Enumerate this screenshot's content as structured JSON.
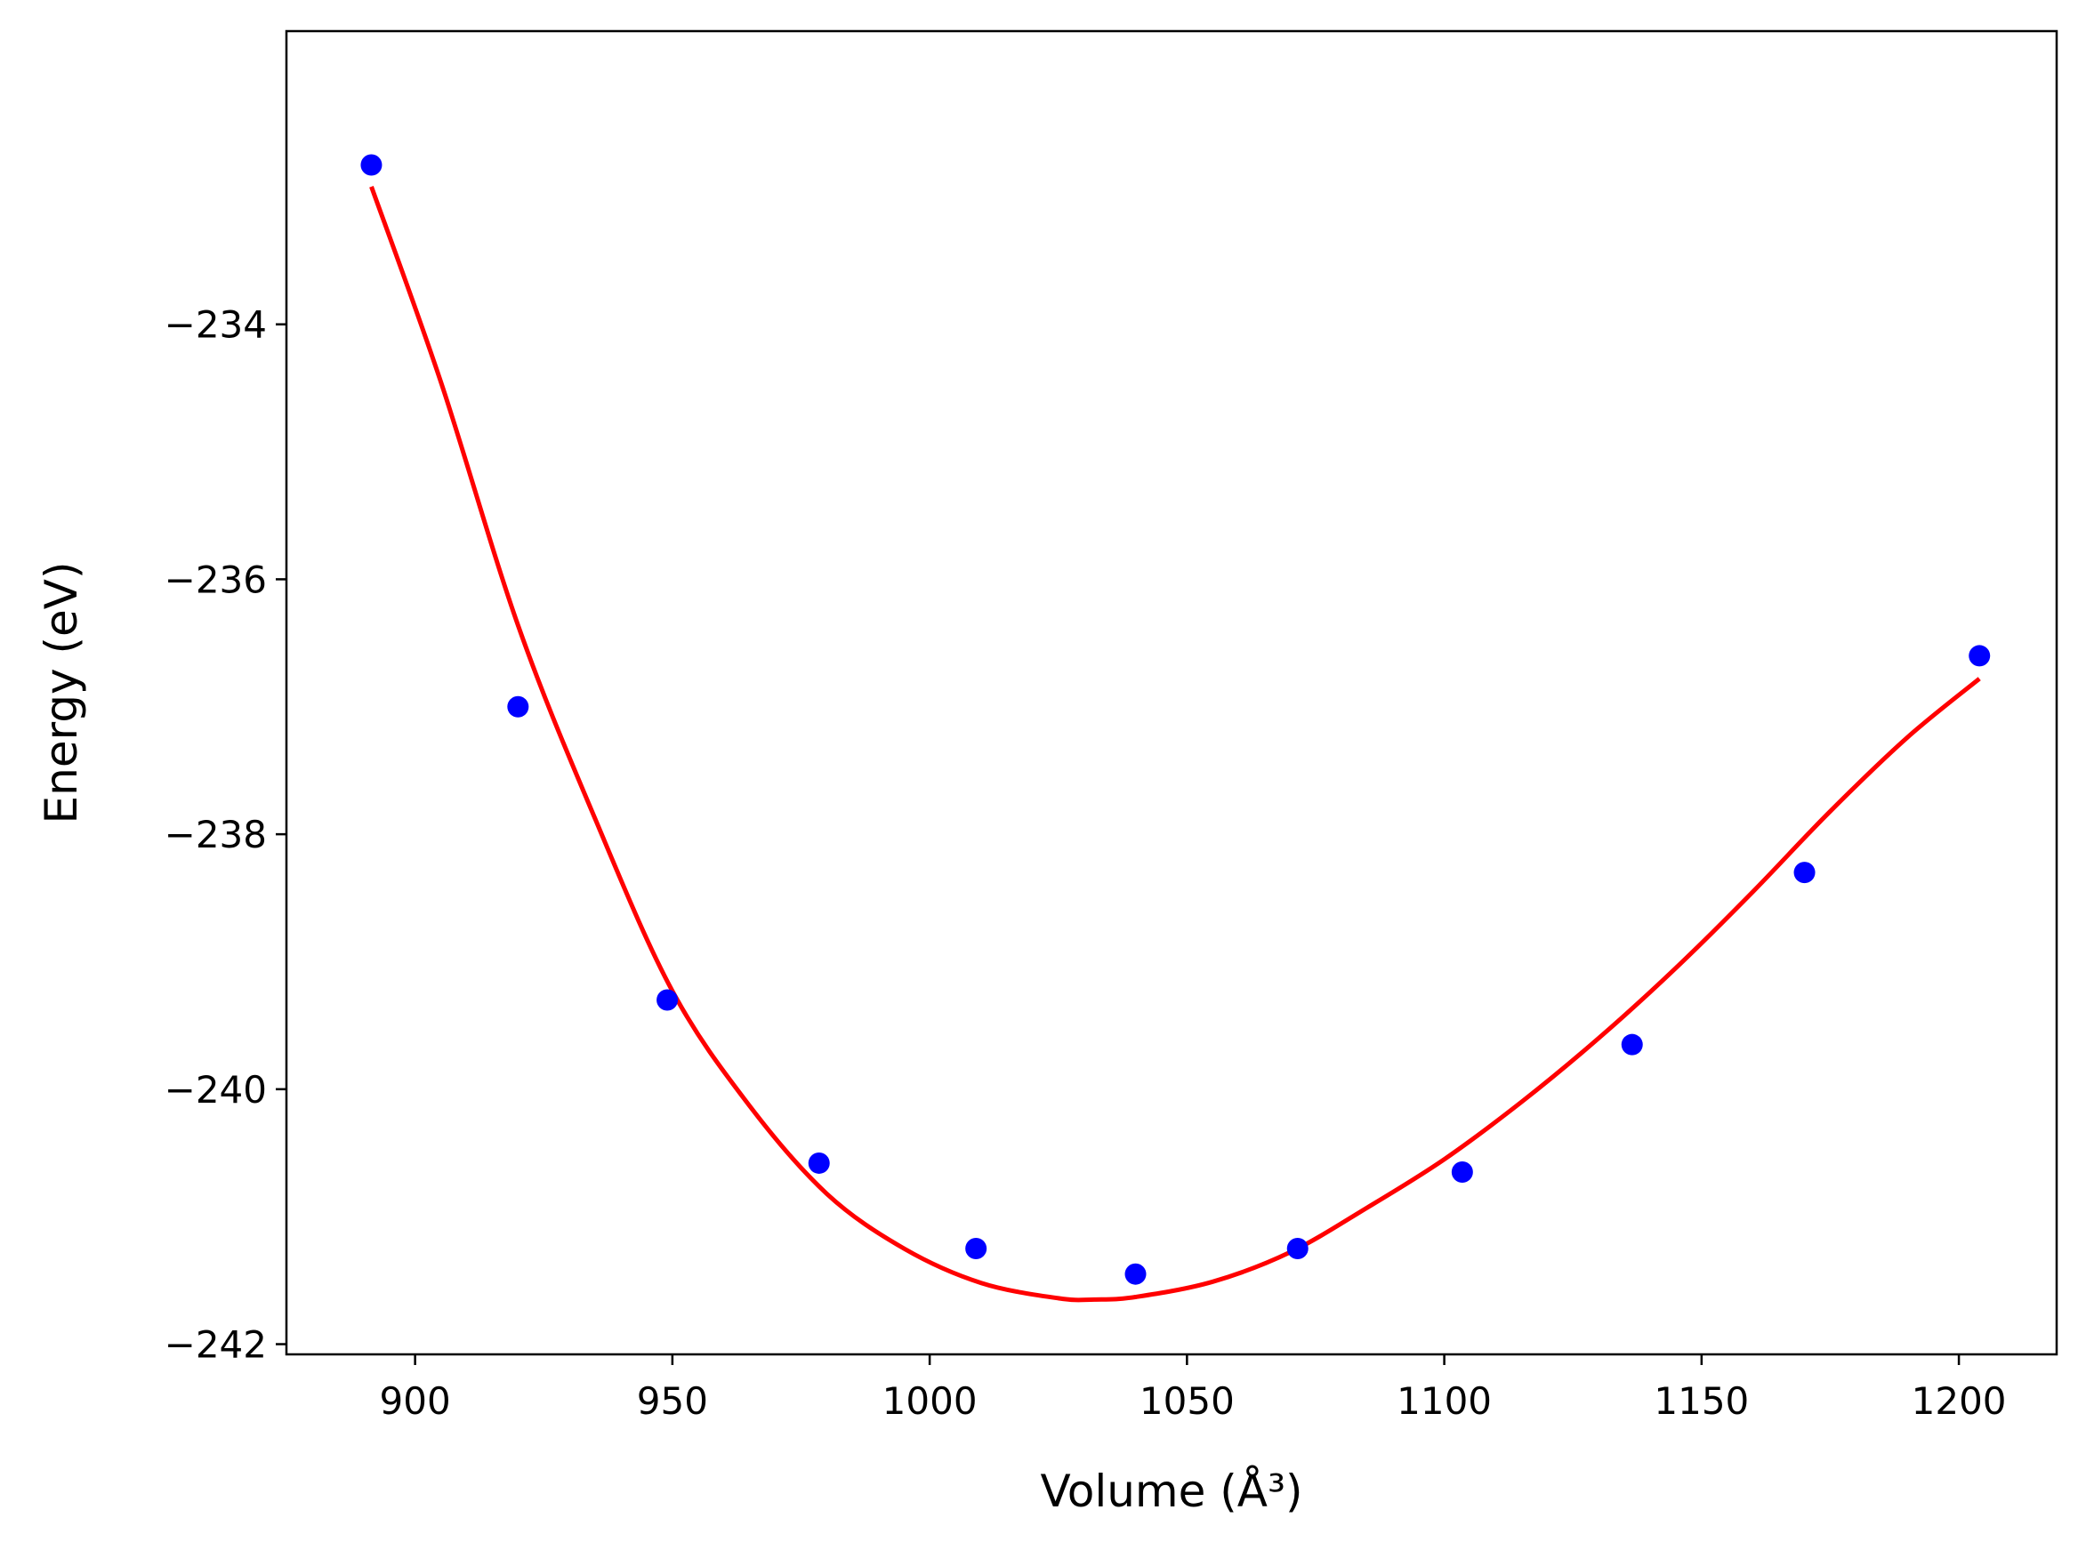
{
  "chart_data": {
    "type": "scatter",
    "title": "",
    "xlabel": "Volume (Å³)",
    "ylabel": "Energy (eV)",
    "xlim": [
      875,
      1219
    ],
    "ylim": [
      -242.08,
      -231.7
    ],
    "xticks": [
      900,
      950,
      1000,
      1050,
      1100,
      1150,
      1200
    ],
    "yticks": [
      -234,
      -236,
      -238,
      -240,
      -242
    ],
    "xtick_labels": [
      "900",
      "950",
      "1000",
      "1050",
      "1100",
      "1150",
      "1200"
    ],
    "ytick_labels": [
      "−234",
      "−236",
      "−238",
      "−240",
      "−242"
    ],
    "grid": false,
    "series": [
      {
        "kind": "points",
        "color": "#0000ff",
        "x": [
          891.5,
          920.0,
          949.0,
          978.5,
          1009.0,
          1040.0,
          1071.5,
          1103.5,
          1136.5,
          1170.0,
          1204.0
        ],
        "y": [
          -232.75,
          -237.0,
          -239.3,
          -240.58,
          -241.25,
          -241.45,
          -241.25,
          -240.65,
          -239.65,
          -238.3,
          -236.6
        ]
      },
      {
        "kind": "fit-curve",
        "color": "#ff0000",
        "x": [
          891.5,
          905,
          920,
          935,
          950,
          965,
          980,
          995,
          1010,
          1025,
          1032,
          1040,
          1055,
          1070,
          1085,
          1100,
          1115,
          1130,
          1145,
          1160,
          1175,
          1190,
          1204
        ],
        "y": [
          -232.92,
          -234.45,
          -236.36,
          -237.88,
          -239.23,
          -240.13,
          -240.82,
          -241.25,
          -241.52,
          -241.64,
          -241.65,
          -241.63,
          -241.51,
          -241.28,
          -240.93,
          -240.55,
          -240.1,
          -239.6,
          -239.05,
          -238.45,
          -237.82,
          -237.24,
          -236.78
        ]
      }
    ]
  }
}
